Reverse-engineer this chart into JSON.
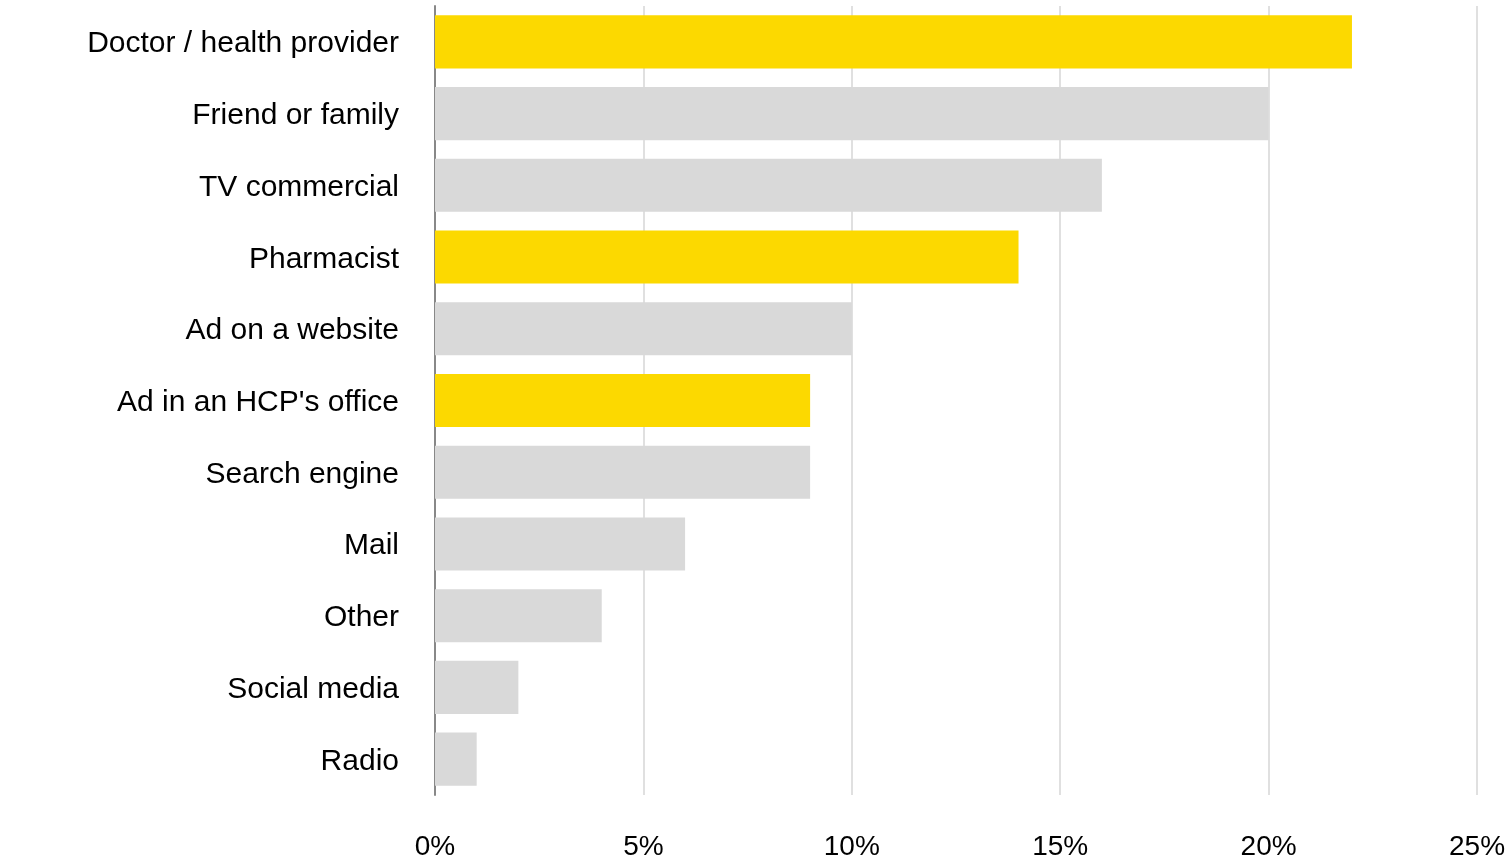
{
  "chart_data": {
    "type": "bar",
    "orientation": "horizontal",
    "categories": [
      "Doctor / health provider",
      "Friend or family",
      "TV commercial",
      "Pharmacist",
      "Ad on a website",
      "Ad in an HCP's office",
      "Search engine",
      "Mail",
      "Other",
      "Social media",
      "Radio"
    ],
    "values": [
      22,
      20,
      16,
      14,
      10,
      9,
      9,
      6,
      4,
      2,
      1
    ],
    "colors": [
      "#fcd900",
      "#d9d9d9",
      "#d9d9d9",
      "#fcd900",
      "#d9d9d9",
      "#fcd900",
      "#d9d9d9",
      "#d9d9d9",
      "#d9d9d9",
      "#d9d9d9",
      "#d9d9d9"
    ],
    "xlim": [
      0,
      25
    ],
    "xticks": [
      {
        "value": 0,
        "label": "0%"
      },
      {
        "value": 5,
        "label": "5%"
      },
      {
        "value": 10,
        "label": "10%"
      },
      {
        "value": 15,
        "label": "15%"
      },
      {
        "value": 20,
        "label": "20%"
      },
      {
        "value": 25,
        "label": "25%"
      }
    ],
    "grid": "x"
  }
}
